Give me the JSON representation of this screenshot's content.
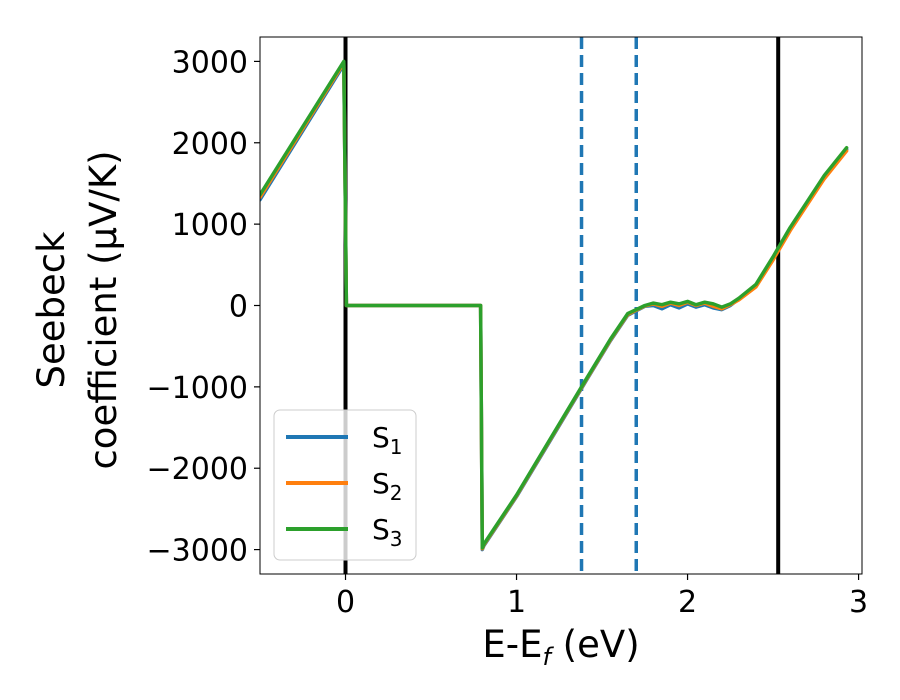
{
  "chart_data": {
    "type": "line",
    "xlabel": "E-E",
    "xlabel_sub": "f",
    "xlabel_unit": " (eV)",
    "ylabel_line1": "Seebeck",
    "ylabel_line2": "coefficient  (μV/K)",
    "xlim": [
      -0.5,
      3.02
    ],
    "ylim": [
      -3300,
      3300
    ],
    "xticks": [
      0,
      1,
      2,
      3
    ],
    "xtick_labels": [
      "0",
      "1",
      "2",
      "3"
    ],
    "yticks": [
      3000,
      2000,
      1000,
      0,
      -1000,
      -2000,
      -3000
    ],
    "ytick_labels": [
      "3000",
      "2000",
      "1000",
      "0",
      "−1000",
      "−2000",
      "−3000"
    ],
    "vlines": [
      {
        "x": 0.0,
        "style": "solid",
        "color": "#000000"
      },
      {
        "x": 2.53,
        "style": "solid",
        "color": "#000000"
      },
      {
        "x": 1.38,
        "style": "dashed",
        "color": "#1f77b4"
      },
      {
        "x": 1.7,
        "style": "dashed",
        "color": "#1f77b4"
      }
    ],
    "legend_position": "lower-left",
    "series": [
      {
        "name": "S",
        "sub": "1",
        "color": "#1f77b4",
        "x": [
          -0.5,
          -0.01,
          0.005,
          0.79,
          0.8,
          0.81,
          1.0,
          1.2,
          1.4,
          1.55,
          1.65,
          1.75,
          1.8,
          1.85,
          1.9,
          1.95,
          2.0,
          2.05,
          2.1,
          2.15,
          2.2,
          2.25,
          2.3,
          2.4,
          2.5,
          2.6,
          2.7,
          2.8,
          2.93
        ],
        "y": [
          1300,
          2960,
          0,
          0,
          -3000,
          -2950,
          -2350,
          -1650,
          -950,
          -430,
          -120,
          -10,
          0,
          -40,
          10,
          -30,
          20,
          -20,
          10,
          -30,
          -50,
          0,
          80,
          250,
          580,
          940,
          1260,
          1580,
          1920
        ]
      },
      {
        "name": "S",
        "sub": "2",
        "color": "#ff7f0e",
        "x": [
          -0.5,
          -0.01,
          0.005,
          0.79,
          0.8,
          0.81,
          1.0,
          1.2,
          1.4,
          1.55,
          1.65,
          1.75,
          1.8,
          1.85,
          1.9,
          1.95,
          2.0,
          2.05,
          2.1,
          2.15,
          2.2,
          2.25,
          2.3,
          2.4,
          2.5,
          2.6,
          2.7,
          2.8,
          2.93
        ],
        "y": [
          1330,
          2980,
          0,
          0,
          -2990,
          -2940,
          -2340,
          -1640,
          -940,
          -420,
          -110,
          -5,
          20,
          -10,
          30,
          0,
          40,
          0,
          30,
          -10,
          -40,
          10,
          70,
          230,
          560,
          920,
          1240,
          1560,
          1900
        ]
      },
      {
        "name": "S",
        "sub": "3",
        "color": "#2ca02c",
        "x": [
          -0.5,
          -0.01,
          0.005,
          0.79,
          0.8,
          0.81,
          1.0,
          1.2,
          1.4,
          1.55,
          1.65,
          1.75,
          1.8,
          1.85,
          1.9,
          1.95,
          2.0,
          2.05,
          2.1,
          2.15,
          2.2,
          2.25,
          2.3,
          2.4,
          2.5,
          2.6,
          2.7,
          2.8,
          2.93
        ],
        "y": [
          1360,
          3000,
          0,
          0,
          -2980,
          -2930,
          -2330,
          -1630,
          -930,
          -410,
          -100,
          0,
          30,
          10,
          40,
          20,
          50,
          10,
          40,
          20,
          -20,
          20,
          90,
          260,
          600,
          960,
          1280,
          1600,
          1940
        ]
      }
    ]
  }
}
